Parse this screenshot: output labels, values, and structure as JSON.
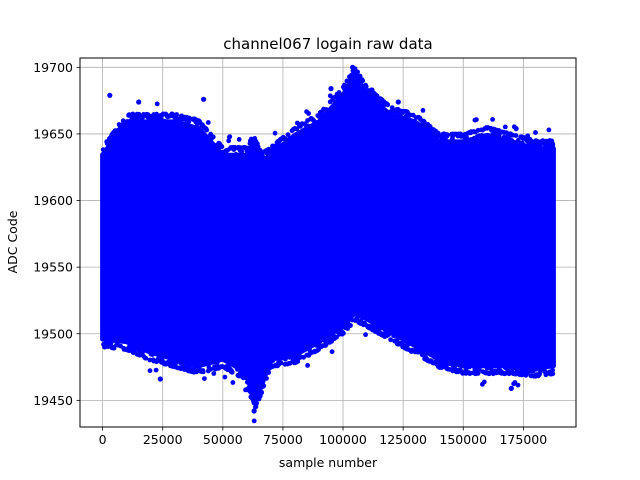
{
  "chart_data": {
    "type": "scatter",
    "title": "channel067 logain raw data",
    "xlabel": "sample number",
    "ylabel": "ADC Code",
    "xlim": [
      -9400,
      196900
    ],
    "ylim": [
      19430,
      19707
    ],
    "x_ticks": [
      0,
      25000,
      50000,
      75000,
      100000,
      125000,
      150000,
      175000
    ],
    "x_tick_labels": [
      "0",
      "25000",
      "50000",
      "75000",
      "100000",
      "125000",
      "150000",
      "175000"
    ],
    "y_ticks": [
      19450,
      19500,
      19550,
      19600,
      19650,
      19700
    ],
    "y_tick_labels": [
      "19450",
      "19500",
      "19550",
      "19600",
      "19650",
      "19700"
    ],
    "grid": true,
    "marker_color": "#0000ff",
    "x_range": [
      0,
      187500
    ],
    "envelope": {
      "x": [
        0,
        10000,
        20000,
        30000,
        40000,
        50000,
        60000,
        63000,
        66000,
        70000,
        80000,
        90000,
        100000,
        105000,
        110000,
        120000,
        130000,
        140000,
        150000,
        160000,
        170000,
        180000,
        187500
      ],
      "upper": [
        19640,
        19665,
        19665,
        19665,
        19660,
        19640,
        19640,
        19650,
        19635,
        19640,
        19655,
        19665,
        19685,
        19700,
        19685,
        19670,
        19665,
        19650,
        19650,
        19655,
        19650,
        19645,
        19645
      ],
      "lower": [
        19490,
        19488,
        19480,
        19475,
        19470,
        19475,
        19465,
        19442,
        19455,
        19475,
        19478,
        19488,
        19500,
        19510,
        19505,
        19495,
        19485,
        19475,
        19470,
        19470,
        19470,
        19468,
        19470
      ]
    },
    "outliers": [
      {
        "x": 3000,
        "y": 19679
      },
      {
        "x": 42000,
        "y": 19676
      },
      {
        "x": 15000,
        "y": 19674
      },
      {
        "x": 63000,
        "y": 19442
      },
      {
        "x": 95000,
        "y": 19684
      },
      {
        "x": 104000,
        "y": 19700
      },
      {
        "x": 112000,
        "y": 19683
      },
      {
        "x": 123000,
        "y": 19674
      },
      {
        "x": 24000,
        "y": 19466
      },
      {
        "x": 170000,
        "y": 19459
      },
      {
        "x": 172000,
        "y": 19654
      }
    ]
  }
}
